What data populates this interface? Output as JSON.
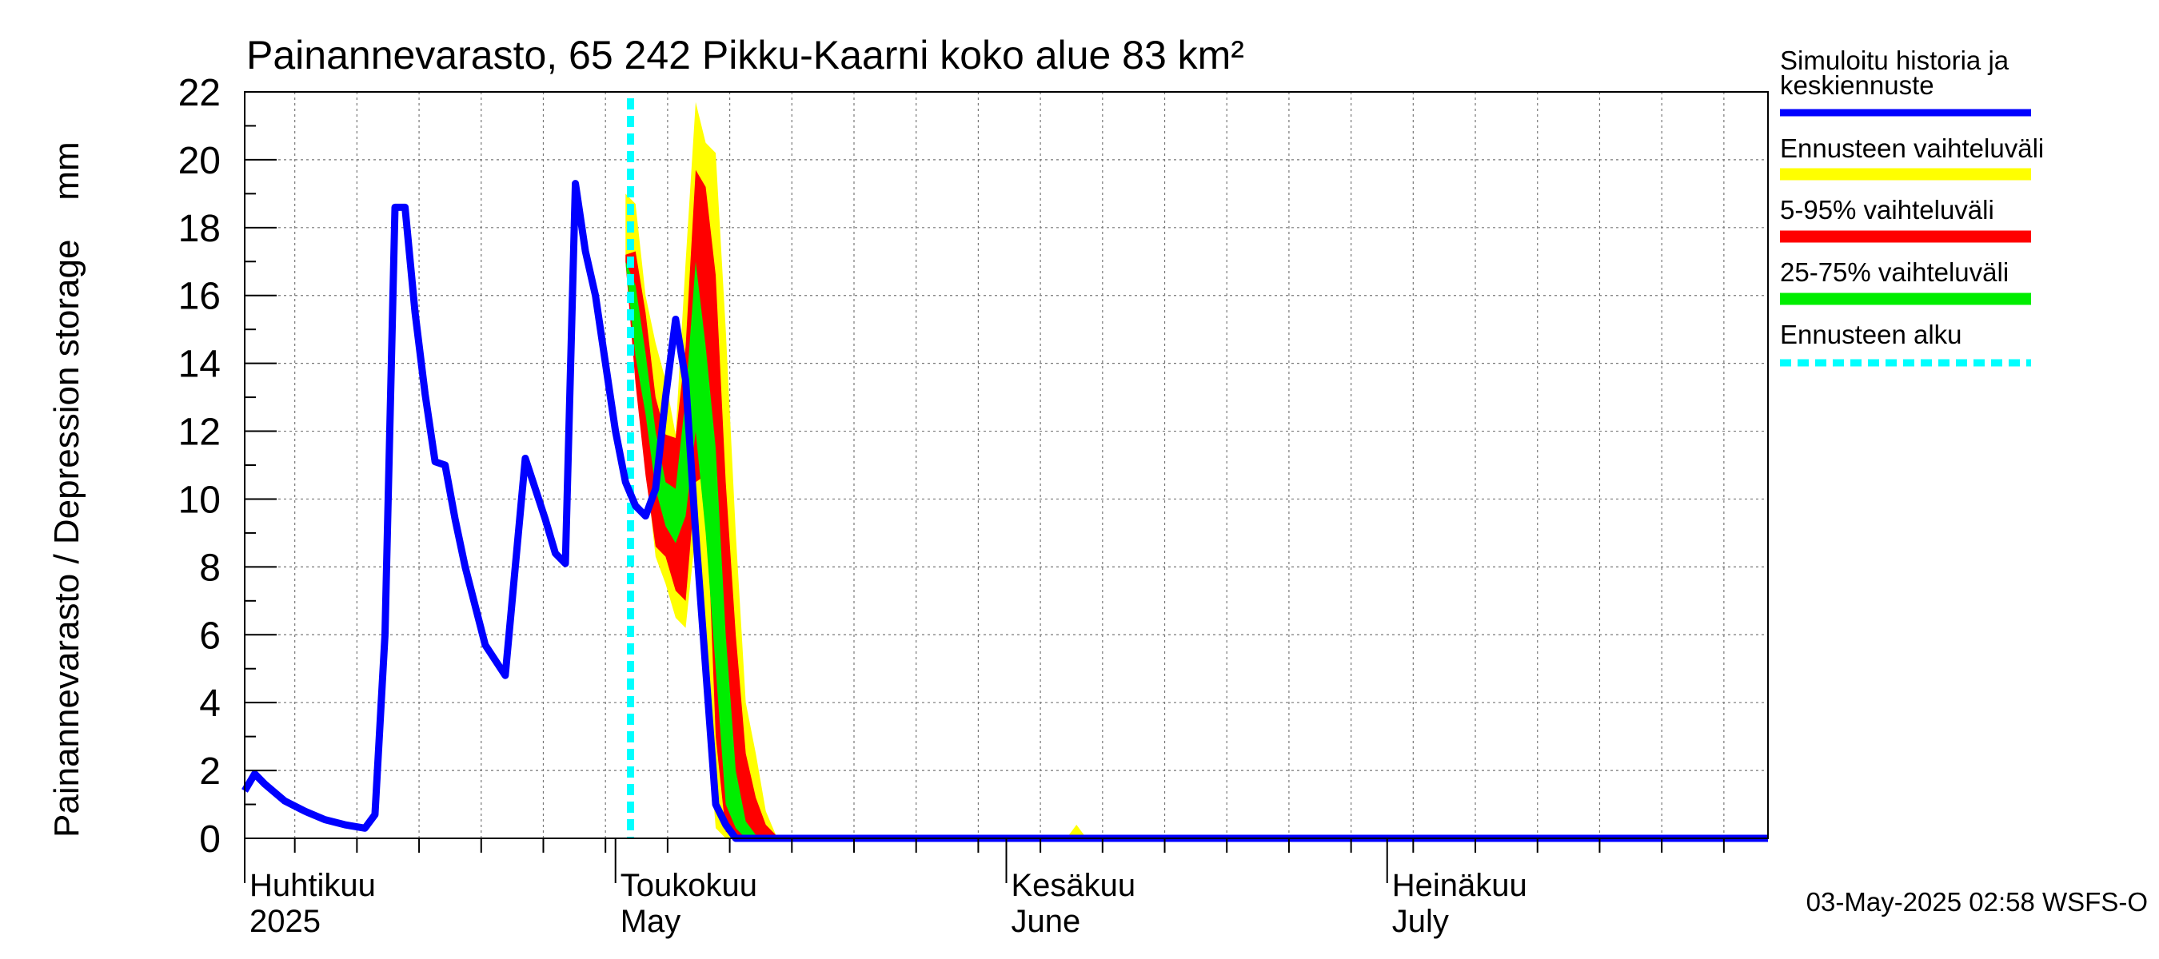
{
  "chart_data": {
    "type": "area",
    "title": "Painannevarasto, 65 242 Pikku-Kaarni koko alue 83 km²",
    "ylabel": "Painannevarasto / Depression storage    mm",
    "ylim": [
      0,
      22
    ],
    "yticks": [
      0,
      2,
      4,
      6,
      8,
      10,
      12,
      14,
      16,
      18,
      20,
      22
    ],
    "xlim_days": [
      0,
      152
    ],
    "month_labels": [
      {
        "day": 0,
        "line1": "Huhtikuu",
        "line2": "2025"
      },
      {
        "day": 37,
        "line1": "Toukokuu",
        "line2": "May"
      },
      {
        "day": 76,
        "line1": "Kesäkuu",
        "line2": "June"
      },
      {
        "day": 114,
        "line1": "Heinäkuu",
        "line2": "July"
      }
    ],
    "month_boundaries": [
      0,
      37,
      76,
      114
    ],
    "forecast_start_day": 38.5,
    "legend": {
      "history": "Simuloitu historia ja\nkeskiennuste",
      "full_range": "Ennusteen vaihteluväli",
      "p5_95": "5-95% vaihteluväli",
      "p25_75": "25-75% vaihteluväli",
      "forecast_start": "Ennusteen alku"
    },
    "colors": {
      "history": "#0000ff",
      "full_range": "#ffff00",
      "p5_95": "#ff0000",
      "p25_75": "#00ee00",
      "forecast_start": "#00ffff"
    },
    "series": [
      {
        "name": "Simuloitu historia ja keskiennuste",
        "x": [
          0,
          1,
          2,
          4,
          6,
          8,
          10,
          12,
          13,
          14,
          15,
          16,
          17,
          18,
          19,
          20,
          21,
          22,
          24,
          26,
          28,
          30,
          31,
          32,
          33,
          34,
          35,
          36,
          37,
          38,
          39,
          40,
          41,
          42,
          43,
          44,
          45,
          46,
          47,
          48,
          49,
          50,
          51,
          52,
          53,
          54,
          55,
          152
        ],
        "y": [
          1.4,
          1.9,
          1.6,
          1.1,
          0.8,
          0.55,
          0.4,
          0.3,
          0.7,
          6,
          18.6,
          18.6,
          15.5,
          13.1,
          11.1,
          11.0,
          9.4,
          8.0,
          5.7,
          4.8,
          11.2,
          9.4,
          8.4,
          8.1,
          19.3,
          17.3,
          16.0,
          14.0,
          12.0,
          10.5,
          9.8,
          9.5,
          10.3,
          13.0,
          15.3,
          13.5,
          9.0,
          5.0,
          1.0,
          0.4,
          0.0,
          0.0,
          0.0,
          0.0,
          0.0,
          0.0,
          0.0,
          0.0
        ]
      },
      {
        "name": "Ennusteen vaihteluväli",
        "x": [
          38,
          39,
          40,
          41,
          42,
          43,
          44,
          45,
          46,
          47,
          48,
          49,
          50,
          51,
          52,
          53,
          54,
          55,
          56
        ],
        "lower": [
          17.0,
          13.5,
          11.0,
          8.3,
          7.5,
          6.5,
          6.2,
          9.0,
          4.0,
          0.3,
          0.0,
          0.0,
          0.0,
          0.0,
          0.0,
          0.0,
          0.0,
          0.0,
          0.0
        ],
        "upper": [
          19.0,
          18.7,
          16.0,
          14.6,
          13.5,
          11.9,
          17.0,
          21.7,
          20.5,
          20.2,
          15.0,
          9.0,
          4.0,
          2.5,
          0.8,
          0.1,
          0.0,
          0.0,
          0.0
        ],
        "extra_spike": {
          "x": [
            82,
            83,
            84
          ],
          "upper": [
            0,
            0.4,
            0
          ]
        }
      },
      {
        "name": "5-95% vaihteluväli",
        "x": [
          38,
          39,
          40,
          41,
          42,
          43,
          44,
          45,
          46,
          47,
          48,
          49,
          50,
          51,
          52,
          53,
          54,
          55
        ],
        "lower": [
          17.0,
          13.4,
          10.7,
          8.6,
          8.3,
          7.3,
          7.0,
          10.5,
          10.7,
          3.0,
          0.2,
          0.0,
          0.0,
          0.0,
          0.0,
          0.0,
          0.0,
          0.0
        ],
        "upper": [
          17.2,
          17.3,
          15.5,
          13.0,
          11.9,
          11.8,
          14.5,
          19.7,
          19.2,
          16.6,
          10.5,
          6.0,
          2.5,
          1.2,
          0.4,
          0.1,
          0.0,
          0.0
        ]
      },
      {
        "name": "25-75% vaihteluväli",
        "x": [
          38,
          39,
          40,
          41,
          42,
          43,
          44,
          45,
          46,
          47,
          48,
          49,
          50,
          51,
          52
        ],
        "lower": [
          17.0,
          14.2,
          12.5,
          10.3,
          9.2,
          8.7,
          9.5,
          12.0,
          9.0,
          5.0,
          1.0,
          0.3,
          0.0,
          0.0,
          0.0
        ],
        "upper": [
          17.0,
          16.3,
          14.3,
          12.0,
          10.5,
          10.3,
          13.0,
          17.0,
          14.5,
          11.5,
          6.0,
          2.0,
          0.5,
          0.1,
          0.0
        ]
      }
    ],
    "footer": "03-May-2025 02:58 WSFS-O"
  }
}
